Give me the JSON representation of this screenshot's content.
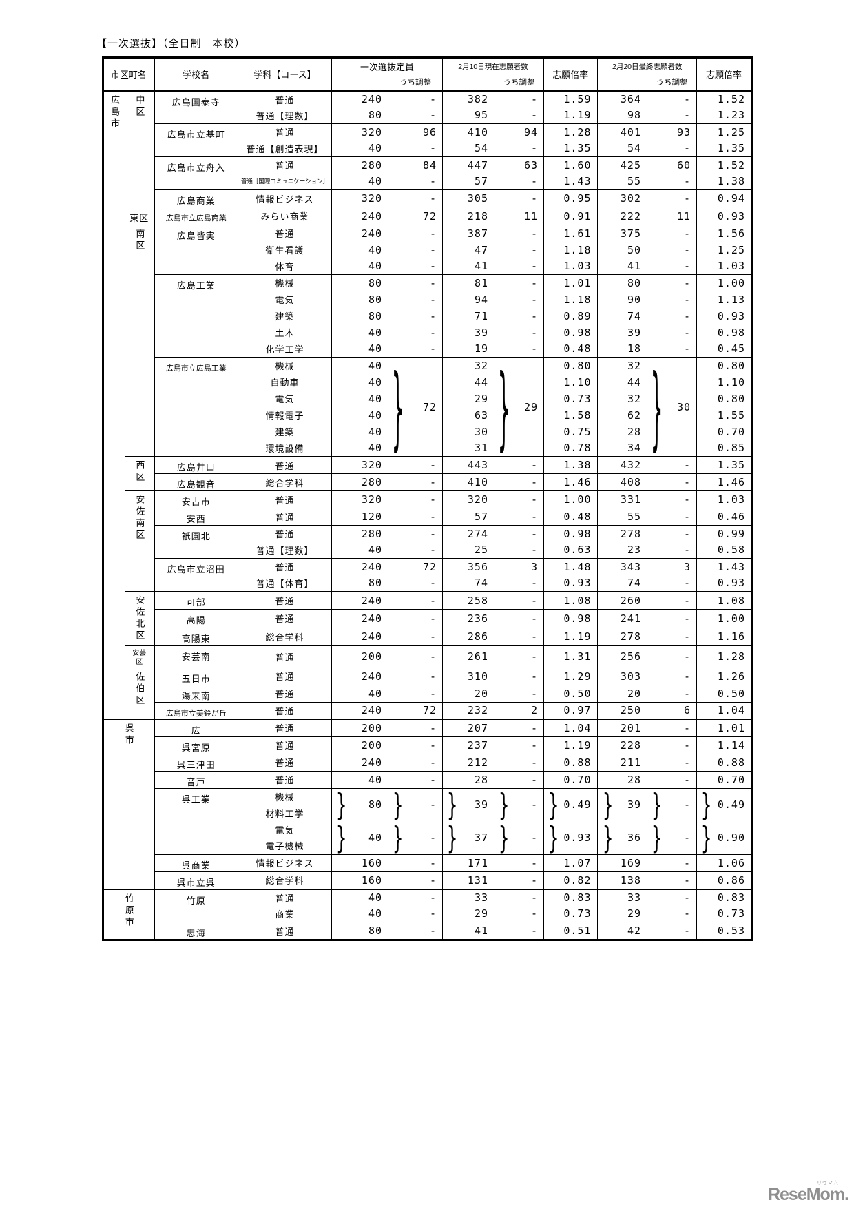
{
  "title": "【一次選抜】（全日制　本校）",
  "header": {
    "col_city": "市区町名",
    "col_school": "学校名",
    "col_course": "学科【コース】",
    "grp_capacity": "一次選抜定員",
    "grp_app_feb10": "2月10日現在志願者数",
    "grp_app_feb20": "2月20日最終志願者数",
    "col_adjust": "うち調整",
    "col_ratio": "志願倍率"
  },
  "logo": {
    "text": "ReseMom.",
    "ruby": "リセマム"
  },
  "rows": [
    {
      "c": {
        "n": "広島市",
        "span": 37,
        "dir": "v"
      },
      "w": {
        "n": "中区",
        "span": 7,
        "dir": "v"
      },
      "s": {
        "n": "広島国泰寺",
        "span": 2
      },
      "k": "普通",
      "v": [
        "240",
        "-",
        "382",
        "-",
        "1.59",
        "364",
        "-",
        "1.52"
      ],
      "ss": true,
      "cs": true
    },
    {
      "k": "普通【理数】",
      "v": [
        "80",
        "-",
        "95",
        "-",
        "1.19",
        "98",
        "-",
        "1.23"
      ]
    },
    {
      "s": {
        "n": "広島市立基町",
        "span": 2
      },
      "k": "普通",
      "v": [
        "320",
        "96",
        "410",
        "94",
        "1.28",
        "401",
        "93",
        "1.25"
      ],
      "ss": true
    },
    {
      "k": "普通【創造表現】",
      "v": [
        "40",
        "-",
        "54",
        "-",
        "1.35",
        "54",
        "-",
        "1.35"
      ]
    },
    {
      "s": {
        "n": "広島市立舟入",
        "span": 2
      },
      "k": "普通",
      "v": [
        "280",
        "84",
        "447",
        "63",
        "1.60",
        "425",
        "60",
        "1.52"
      ],
      "ss": true
    },
    {
      "k": "普通［国際コミュニケーション］",
      "xs": true,
      "v": [
        "40",
        "-",
        "57",
        "-",
        "1.43",
        "55",
        "-",
        "1.38"
      ]
    },
    {
      "s": {
        "n": "広島商業",
        "span": 1
      },
      "k": "情報ビジネス",
      "v": [
        "320",
        "-",
        "305",
        "-",
        "0.95",
        "302",
        "-",
        "0.94"
      ],
      "ss": true
    },
    {
      "w": {
        "n": "東区",
        "span": 1,
        "dir": "h"
      },
      "s": {
        "n": "広島市立広島商業",
        "span": 1
      },
      "k": "みらい商業",
      "v": [
        "240",
        "72",
        "218",
        "11",
        "0.91",
        "222",
        "11",
        "0.93"
      ],
      "ss": true
    },
    {
      "w": {
        "n": "南区",
        "span": 14,
        "dir": "v"
      },
      "s": {
        "n": "広島皆実",
        "span": 3
      },
      "k": "普通",
      "v": [
        "240",
        "-",
        "387",
        "-",
        "1.61",
        "375",
        "-",
        "1.56"
      ],
      "ss": true
    },
    {
      "k": "衛生看護",
      "v": [
        "40",
        "-",
        "47",
        "-",
        "1.18",
        "50",
        "-",
        "1.25"
      ]
    },
    {
      "k": "体育",
      "v": [
        "40",
        "-",
        "41",
        "-",
        "1.03",
        "41",
        "-",
        "1.03"
      ]
    },
    {
      "s": {
        "n": "広島工業",
        "span": 5
      },
      "k": "機械",
      "v": [
        "80",
        "-",
        "81",
        "-",
        "1.01",
        "80",
        "-",
        "1.00"
      ],
      "ss": true
    },
    {
      "k": "電気",
      "v": [
        "80",
        "-",
        "94",
        "-",
        "1.18",
        "90",
        "-",
        "1.13"
      ]
    },
    {
      "k": "建築",
      "v": [
        "80",
        "-",
        "71",
        "-",
        "0.89",
        "74",
        "-",
        "0.93"
      ]
    },
    {
      "k": "土木",
      "v": [
        "40",
        "-",
        "39",
        "-",
        "0.98",
        "39",
        "-",
        "0.98"
      ]
    },
    {
      "k": "化学工学",
      "v": [
        "40",
        "-",
        "19",
        "-",
        "0.48",
        "18",
        "-",
        "0.45"
      ]
    },
    {
      "s": {
        "n": "広島市立広島工業",
        "span": 6
      },
      "k": "機械",
      "v": [
        "40",
        {
          "v": "72",
          "span": 6,
          "brace": true
        },
        "32",
        {
          "v": "29",
          "span": 6,
          "brace": true
        },
        "0.80",
        "32",
        {
          "v": "30",
          "span": 6,
          "brace": true
        },
        "0.80"
      ],
      "ss": true
    },
    {
      "k": "自動車",
      "v": [
        "40",
        null,
        "44",
        null,
        "1.10",
        "44",
        null,
        "1.10"
      ]
    },
    {
      "k": "電気",
      "v": [
        "40",
        null,
        "29",
        null,
        "0.73",
        "32",
        null,
        "0.80"
      ]
    },
    {
      "k": "情報電子",
      "v": [
        "40",
        null,
        "63",
        null,
        "1.58",
        "62",
        null,
        "1.55"
      ]
    },
    {
      "k": "建築",
      "v": [
        "40",
        null,
        "30",
        null,
        "0.75",
        "28",
        null,
        "0.70"
      ]
    },
    {
      "k": "環境設備",
      "v": [
        "40",
        null,
        "31",
        null,
        "0.78",
        "34",
        null,
        "0.85"
      ]
    },
    {
      "w": {
        "n": "西区",
        "span": 2,
        "dir": "v"
      },
      "s": {
        "n": "広島井口",
        "span": 1
      },
      "k": "普通",
      "v": [
        "320",
        "-",
        "443",
        "-",
        "1.38",
        "432",
        "-",
        "1.35"
      ],
      "ss": true
    },
    {
      "s": {
        "n": "広島観音",
        "span": 1
      },
      "k": "総合学科",
      "v": [
        "280",
        "-",
        "410",
        "-",
        "1.46",
        "408",
        "-",
        "1.46"
      ],
      "ss": true
    },
    {
      "w": {
        "n": "安佐南区",
        "span": 6,
        "dir": "v"
      },
      "s": {
        "n": "安古市",
        "span": 1
      },
      "k": "普通",
      "v": [
        "320",
        "-",
        "320",
        "-",
        "1.00",
        "331",
        "-",
        "1.03"
      ],
      "ss": true
    },
    {
      "s": {
        "n": "安西",
        "span": 1
      },
      "k": "普通",
      "v": [
        "120",
        "-",
        "57",
        "-",
        "0.48",
        "55",
        "-",
        "0.46"
      ],
      "ss": true
    },
    {
      "s": {
        "n": "祇園北",
        "span": 2
      },
      "k": "普通",
      "v": [
        "280",
        "-",
        "274",
        "-",
        "0.98",
        "278",
        "-",
        "0.99"
      ],
      "ss": true
    },
    {
      "k": "普通【理数】",
      "v": [
        "40",
        "-",
        "25",
        "-",
        "0.63",
        "23",
        "-",
        "0.58"
      ]
    },
    {
      "s": {
        "n": "広島市立沼田",
        "span": 2
      },
      "k": "普通",
      "v": [
        "240",
        "72",
        "356",
        "3",
        "1.48",
        "343",
        "3",
        "1.43"
      ],
      "ss": true
    },
    {
      "k": "普通【体育】",
      "v": [
        "80",
        "-",
        "74",
        "-",
        "0.93",
        "74",
        "-",
        "0.93"
      ]
    },
    {
      "w": {
        "n": "安佐北区",
        "span": 3,
        "dir": "v"
      },
      "s": {
        "n": "可部",
        "span": 1
      },
      "k": "普通",
      "v": [
        "240",
        "-",
        "258",
        "-",
        "1.08",
        "260",
        "-",
        "1.08"
      ],
      "ss": true
    },
    {
      "s": {
        "n": "高陽",
        "span": 1
      },
      "k": "普通",
      "v": [
        "240",
        "-",
        "236",
        "-",
        "0.98",
        "241",
        "-",
        "1.00"
      ],
      "ss": true
    },
    {
      "s": {
        "n": "高陽東",
        "span": 1
      },
      "k": "総合学科",
      "v": [
        "240",
        "-",
        "286",
        "-",
        "1.19",
        "278",
        "-",
        "1.16"
      ],
      "ss": true
    },
    {
      "w": {
        "n": "安芸区",
        "span": 1,
        "dir": "wrap"
      },
      "s": {
        "n": "安芸南",
        "span": 1
      },
      "k": "普通",
      "v": [
        "200",
        "-",
        "261",
        "-",
        "1.31",
        "256",
        "-",
        "1.28"
      ],
      "ss": true
    },
    {
      "w": {
        "n": "佐伯区",
        "span": 3,
        "dir": "v"
      },
      "s": {
        "n": "五日市",
        "span": 1
      },
      "k": "普通",
      "v": [
        "240",
        "-",
        "310",
        "-",
        "1.29",
        "303",
        "-",
        "1.26"
      ],
      "ss": true
    },
    {
      "s": {
        "n": "湯来南",
        "span": 1
      },
      "k": "普通",
      "v": [
        "40",
        "-",
        "20",
        "-",
        "0.50",
        "20",
        "-",
        "0.50"
      ],
      "ss": true
    },
    {
      "s": {
        "n": "広島市立美鈴が丘",
        "span": 1
      },
      "k": "普通",
      "v": [
        "240",
        "72",
        "232",
        "2",
        "0.97",
        "250",
        "6",
        "1.04"
      ],
      "ss": true
    },
    {
      "c": {
        "n": "呉市",
        "span": 10,
        "dir": "v",
        "colspan": 2
      },
      "s": {
        "n": "広",
        "span": 1
      },
      "k": "普通",
      "v": [
        "200",
        "-",
        "207",
        "-",
        "1.04",
        "201",
        "-",
        "1.01"
      ],
      "ss": true,
      "cs": true
    },
    {
      "s": {
        "n": "呉宮原",
        "span": 1
      },
      "k": "普通",
      "v": [
        "200",
        "-",
        "237",
        "-",
        "1.19",
        "228",
        "-",
        "1.14"
      ],
      "ss": true
    },
    {
      "s": {
        "n": "呉三津田",
        "span": 1
      },
      "k": "普通",
      "v": [
        "240",
        "-",
        "212",
        "-",
        "0.88",
        "211",
        "-",
        "0.88"
      ],
      "ss": true
    },
    {
      "s": {
        "n": "音戸",
        "span": 1
      },
      "k": "普通",
      "v": [
        "40",
        "-",
        "28",
        "-",
        "0.70",
        "28",
        "-",
        "0.70"
      ],
      "ss": true
    },
    {
      "s": {
        "n": "呉工業",
        "span": 4
      },
      "k": "機械",
      "v": [
        {
          "v": "80",
          "span": 2,
          "brace": true
        },
        {
          "v": "-",
          "span": 2,
          "brace": true
        },
        {
          "v": "39",
          "span": 2,
          "brace": true
        },
        {
          "v": "-",
          "span": 2,
          "brace": true
        },
        {
          "v": "0.49",
          "span": 2,
          "brace": true
        },
        {
          "v": "39",
          "span": 2,
          "brace": true
        },
        {
          "v": "-",
          "span": 2,
          "brace": true
        },
        {
          "v": "0.49",
          "span": 2,
          "brace": true
        }
      ],
      "ss": true
    },
    {
      "k": "材料工学",
      "v": [
        null,
        null,
        null,
        null,
        null,
        null,
        null,
        null
      ]
    },
    {
      "k": "電気",
      "v": [
        {
          "v": "40",
          "span": 2,
          "brace": true
        },
        {
          "v": "-",
          "span": 2,
          "brace": true
        },
        {
          "v": "37",
          "span": 2,
          "brace": true
        },
        {
          "v": "-",
          "span": 2,
          "brace": true
        },
        {
          "v": "0.93",
          "span": 2,
          "brace": true
        },
        {
          "v": "36",
          "span": 2,
          "brace": true
        },
        {
          "v": "-",
          "span": 2,
          "brace": true
        },
        {
          "v": "0.90",
          "span": 2,
          "brace": true
        }
      ]
    },
    {
      "k": "電子機械",
      "v": [
        null,
        null,
        null,
        null,
        null,
        null,
        null,
        null
      ]
    },
    {
      "s": {
        "n": "呉商業",
        "span": 1
      },
      "k": "情報ビジネス",
      "v": [
        "160",
        "-",
        "171",
        "-",
        "1.07",
        "169",
        "-",
        "1.06"
      ],
      "ss": true
    },
    {
      "s": {
        "n": "呉市立呉",
        "span": 1
      },
      "k": "総合学科",
      "v": [
        "160",
        "-",
        "131",
        "-",
        "0.82",
        "138",
        "-",
        "0.86"
      ],
      "ss": true
    },
    {
      "c": {
        "n": "竹原市",
        "span": 3,
        "dir": "v",
        "colspan": 2
      },
      "s": {
        "n": "竹原",
        "span": 2
      },
      "k": "普通",
      "v": [
        "40",
        "-",
        "33",
        "-",
        "0.83",
        "33",
        "-",
        "0.83"
      ],
      "ss": true,
      "cs": true
    },
    {
      "k": "商業",
      "v": [
        "40",
        "-",
        "29",
        "-",
        "0.73",
        "29",
        "-",
        "0.73"
      ]
    },
    {
      "s": {
        "n": "忠海",
        "span": 1
      },
      "k": "普通",
      "v": [
        "80",
        "-",
        "41",
        "-",
        "0.51",
        "42",
        "-",
        "0.53"
      ],
      "ss": true
    }
  ]
}
